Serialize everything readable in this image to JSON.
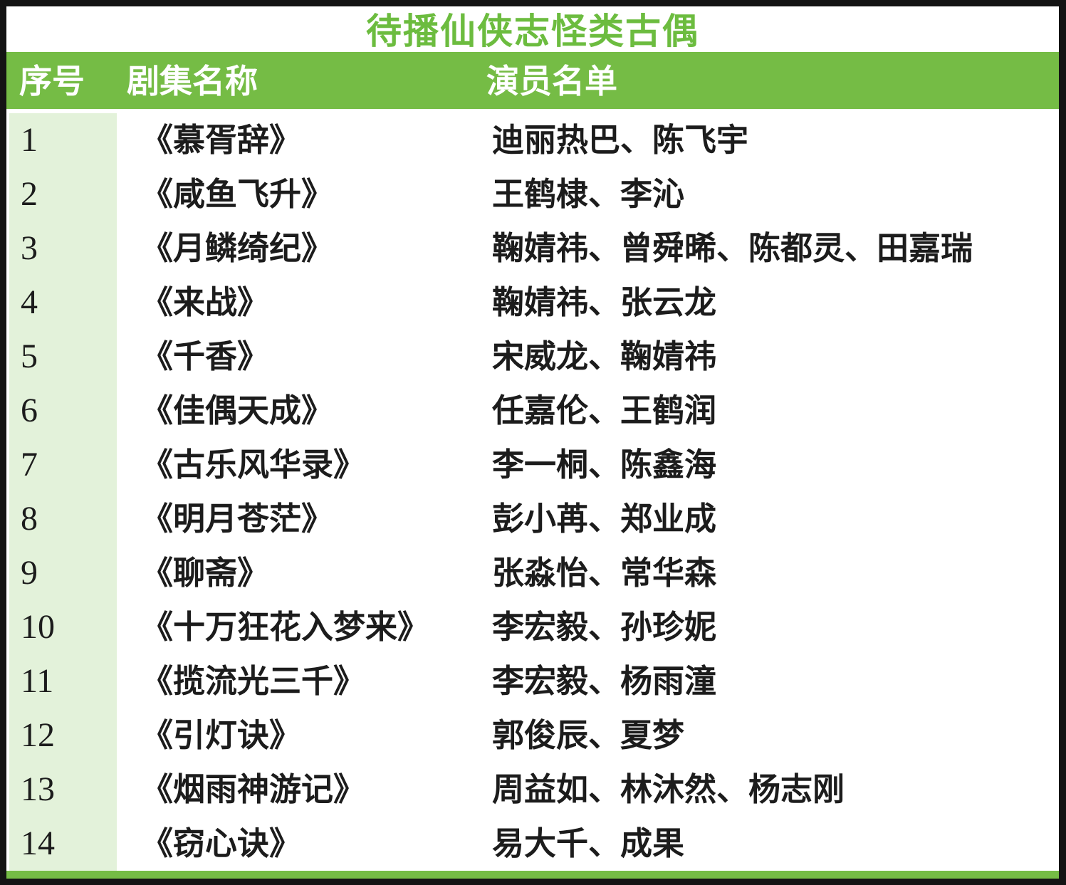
{
  "chart_data": {
    "type": "table",
    "title": "待播仙侠志怪类古偶",
    "columns": [
      "序号",
      "剧集名称",
      "演员名单"
    ],
    "rows": [
      [
        "1",
        "《慕胥辞》",
        "迪丽热巴、陈飞宇"
      ],
      [
        "2",
        "《咸鱼飞升》",
        "王鹤棣、李沁"
      ],
      [
        "3",
        "《月鳞绮纪》",
        "鞠婧祎、曾舜晞、陈都灵、田嘉瑞"
      ],
      [
        "4",
        "《来战》",
        "鞠婧祎、张云龙"
      ],
      [
        "5",
        "《千香》",
        "宋威龙、鞠婧祎"
      ],
      [
        "6",
        "《佳偶天成》",
        "任嘉伦、王鹤润"
      ],
      [
        "7",
        "《古乐风华录》",
        "李一桐、陈鑫海"
      ],
      [
        "8",
        "《明月苍茫》",
        "彭小苒、郑业成"
      ],
      [
        "9",
        "《聊斋》",
        "张淼怡、常华森"
      ],
      [
        "10",
        "《十万狂花入梦来》",
        "李宏毅、孙珍妮"
      ],
      [
        "11",
        "《揽流光三千》",
        "李宏毅、杨雨潼"
      ],
      [
        "12",
        "《引灯诀》",
        "郭俊辰、夏梦"
      ],
      [
        "13",
        "《烟雨神游记》",
        "周益如、林沐然、杨志刚"
      ],
      [
        "14",
        "《窃心诀》",
        "易大千、成果"
      ]
    ],
    "layout": {
      "header_position": "top",
      "index_column_shaded": true,
      "grid_lines": "none"
    },
    "colors": {
      "header_background": "#75bc45",
      "index_column_background": "#e3f2da",
      "title_text": "#6cbc3f",
      "header_text": "#ffffff",
      "body_text": "#1c1c1c",
      "outer_border": "#141414",
      "bottom_accent_bar": "#75bc45"
    }
  }
}
